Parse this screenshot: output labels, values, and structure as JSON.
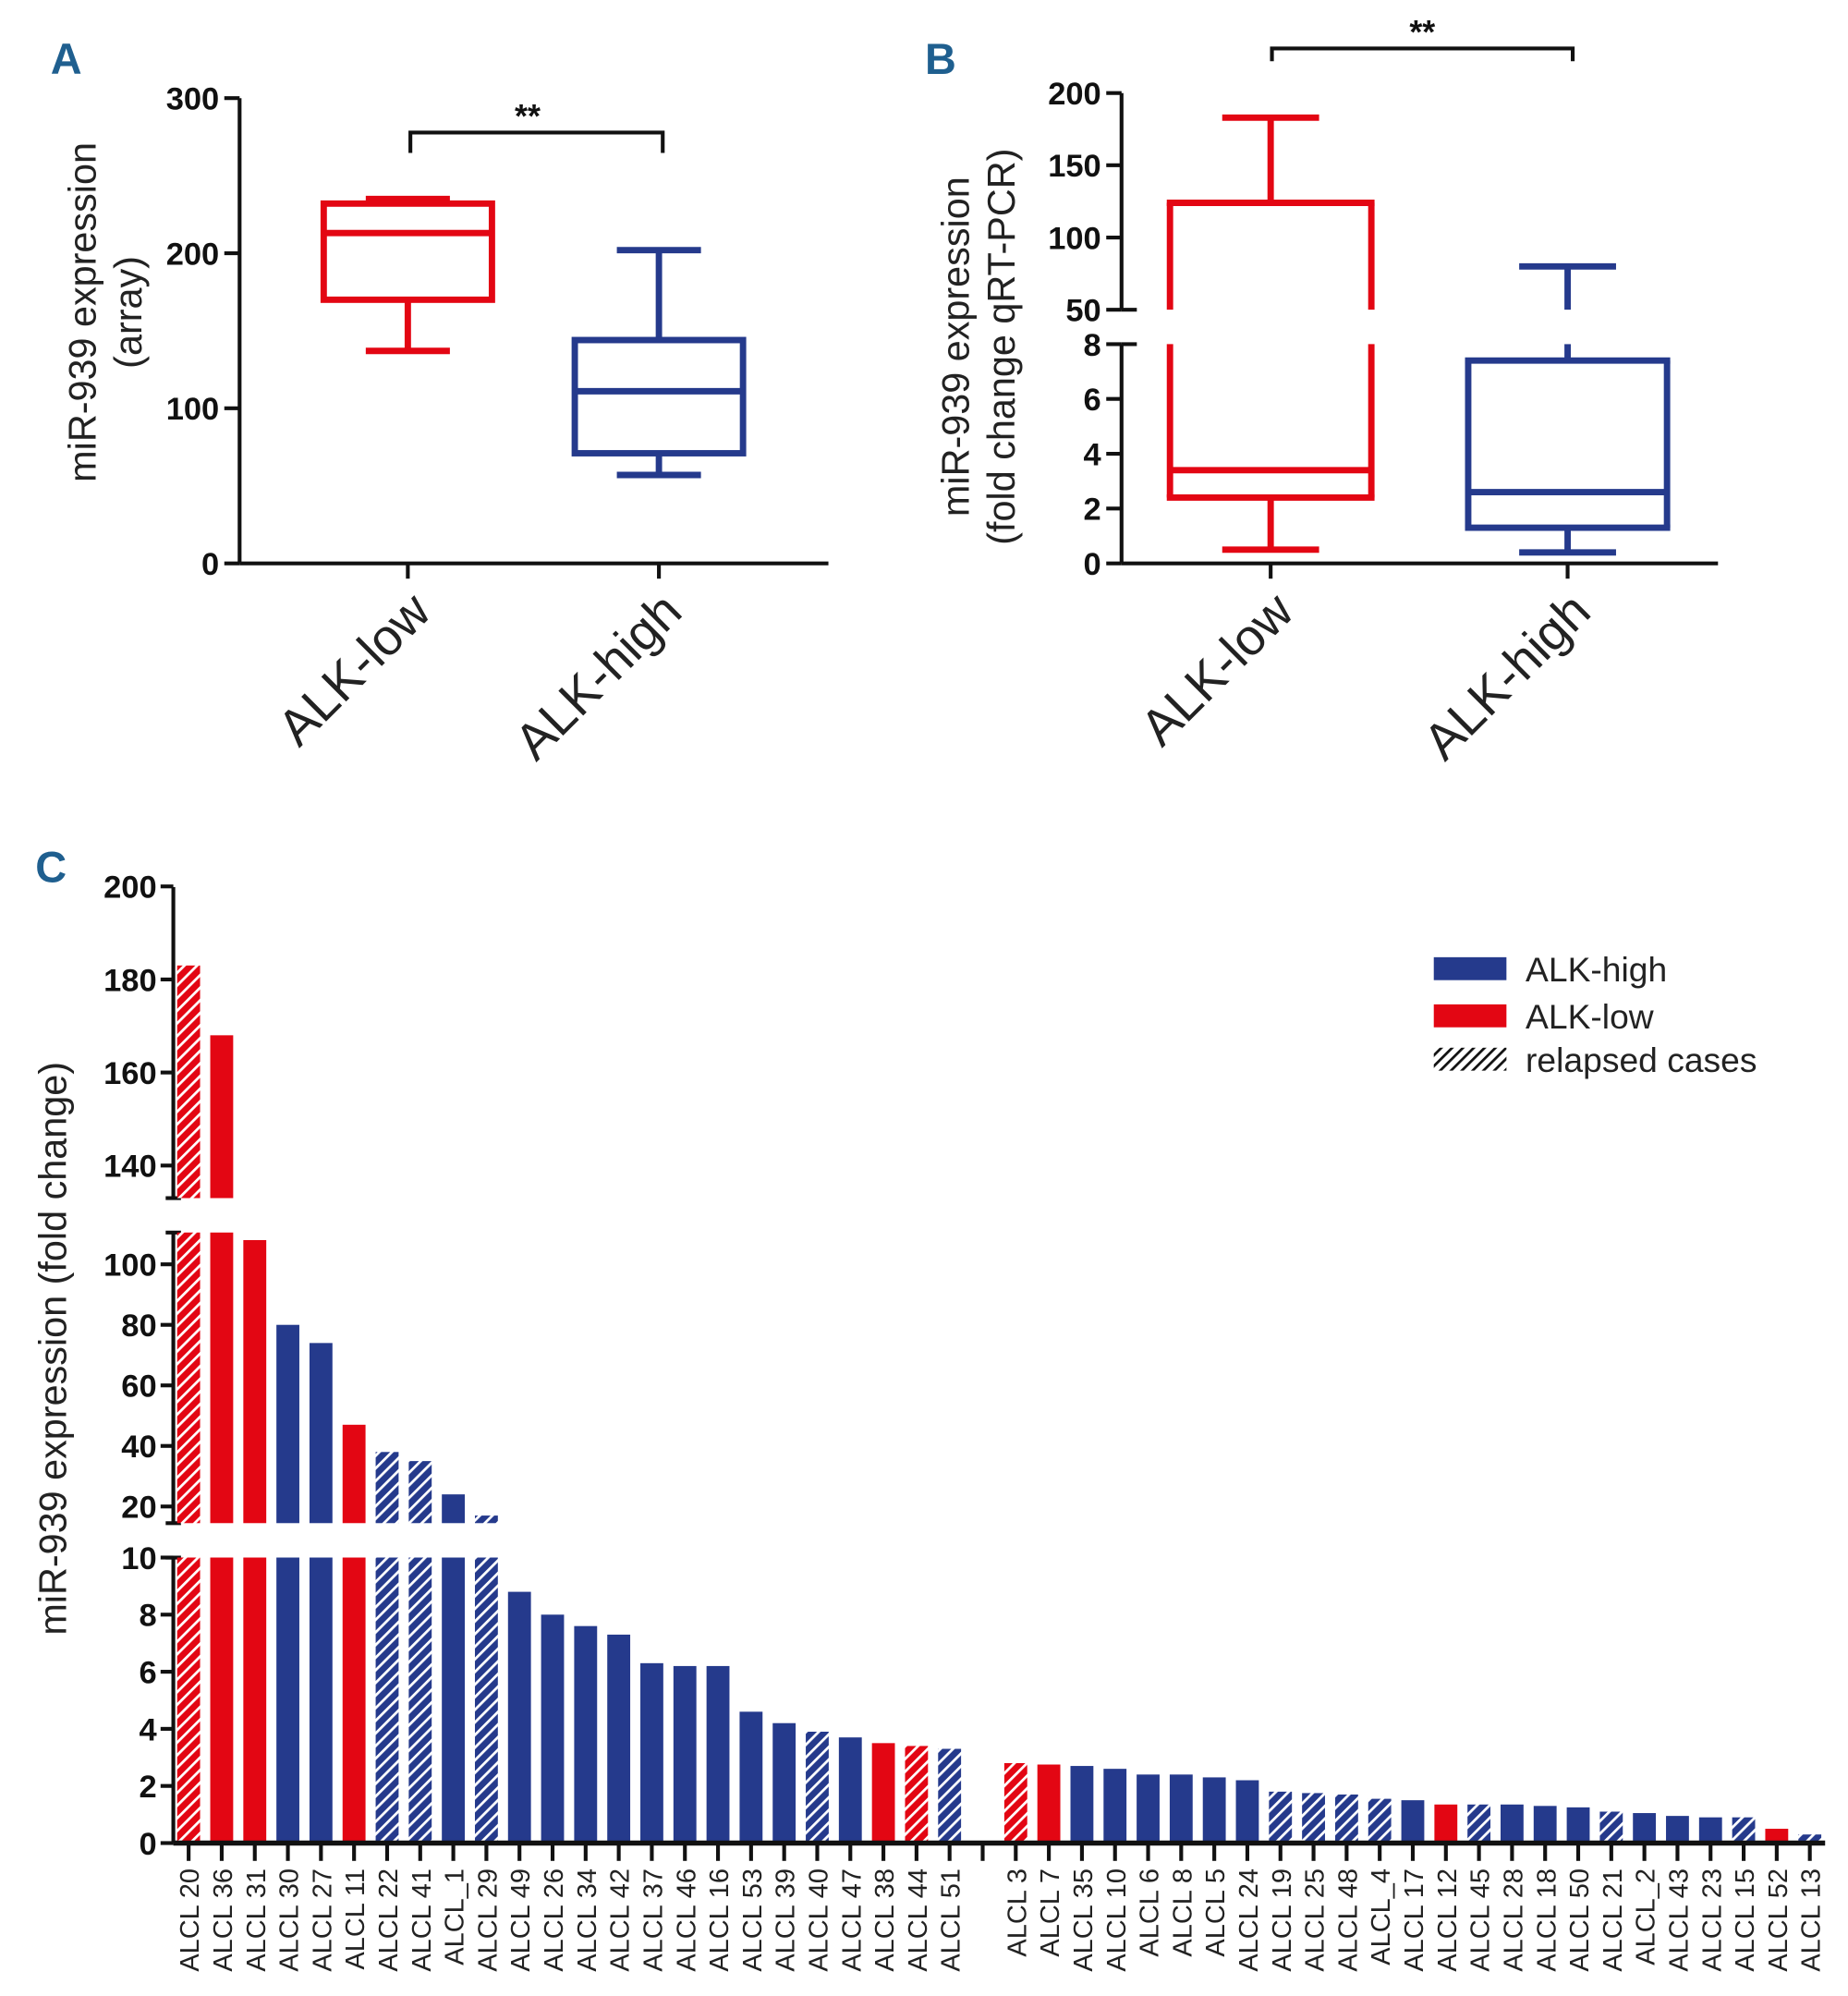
{
  "colors": {
    "red": "#e30613",
    "blue": "#253a8c",
    "panel_label": "#1f5f8f"
  },
  "chart_data": [
    {
      "type": "box",
      "panel": "A",
      "ylabel": [
        "miR-939 expression",
        "(array)"
      ],
      "ylim": [
        0,
        300
      ],
      "yticks": [
        0,
        100,
        200,
        300
      ],
      "categories": [
        "ALK-low",
        "ALK-high"
      ],
      "significance": "**",
      "boxes": [
        {
          "name": "ALK-low",
          "color": "red",
          "min": 137,
          "q1": 170,
          "median": 213,
          "q3": 232,
          "max": 235
        },
        {
          "name": "ALK-high",
          "color": "blue",
          "min": 57,
          "q1": 71,
          "median": 111,
          "q3": 144,
          "max": 202
        }
      ]
    },
    {
      "type": "box",
      "panel": "B",
      "ylabel": [
        "miR-939 expression",
        "(fold change qRT-PCR)"
      ],
      "axis_break": [
        8,
        50
      ],
      "ylim": [
        0,
        200
      ],
      "yticks": [
        0,
        2,
        4,
        6,
        8,
        50,
        100,
        150,
        200
      ],
      "categories": [
        "ALK-low",
        "ALK-high"
      ],
      "significance": "**",
      "boxes": [
        {
          "name": "ALK-low",
          "color": "red",
          "min": 0.5,
          "q1": 2.4,
          "median": 3.4,
          "q3": 124,
          "max": 183
        },
        {
          "name": "ALK-high",
          "color": "blue",
          "min": 0.4,
          "q1": 1.3,
          "median": 2.6,
          "q3": 7.4,
          "max": 80
        }
      ]
    },
    {
      "type": "bar",
      "panel": "C",
      "ylabel": "miR-939 expression (fold change)",
      "axis_breaks": [
        [
          10,
          14.5
        ],
        [
          110.5,
          133
        ]
      ],
      "ylim": [
        0,
        200
      ],
      "yticks": [
        0,
        2,
        4,
        6,
        8,
        10,
        20,
        40,
        60,
        80,
        100,
        140,
        160,
        180,
        200
      ],
      "legend": {
        "position": "top-right",
        "entries": [
          {
            "label": "ALK-high",
            "kind": "blue"
          },
          {
            "label": "ALK-low",
            "kind": "red"
          },
          {
            "label": "relapsed cases",
            "kind": "hatch"
          }
        ]
      },
      "groups": [
        [
          {
            "label": "ALCL 20",
            "value": 183,
            "color": "red",
            "relapsed": true
          },
          {
            "label": "ALCL 36",
            "value": 168,
            "color": "red",
            "relapsed": false
          },
          {
            "label": "ALCL 31",
            "value": 108,
            "color": "red",
            "relapsed": false
          },
          {
            "label": "ALCL 30",
            "value": 80,
            "color": "blue",
            "relapsed": false
          },
          {
            "label": "ALCL 27",
            "value": 74,
            "color": "blue",
            "relapsed": false
          },
          {
            "label": "ALCL 11",
            "value": 47,
            "color": "red",
            "relapsed": false
          },
          {
            "label": "ALCL 22",
            "value": 38,
            "color": "blue",
            "relapsed": true
          },
          {
            "label": "ALCL 41",
            "value": 35,
            "color": "blue",
            "relapsed": true
          },
          {
            "label": "ALCL_1",
            "value": 24,
            "color": "blue",
            "relapsed": false
          },
          {
            "label": "ALCL 29",
            "value": 17,
            "color": "blue",
            "relapsed": true
          },
          {
            "label": "ALCL 49",
            "value": 8.8,
            "color": "blue",
            "relapsed": false
          },
          {
            "label": "ALCL 26",
            "value": 8.0,
            "color": "blue",
            "relapsed": false
          },
          {
            "label": "ALCL 34",
            "value": 7.6,
            "color": "blue",
            "relapsed": false
          },
          {
            "label": "ALCL 42",
            "value": 7.3,
            "color": "blue",
            "relapsed": false
          },
          {
            "label": "ALCL 37",
            "value": 6.3,
            "color": "blue",
            "relapsed": false
          },
          {
            "label": "ALCL 46",
            "value": 6.2,
            "color": "blue",
            "relapsed": false
          },
          {
            "label": "ALCL 16",
            "value": 6.2,
            "color": "blue",
            "relapsed": false
          },
          {
            "label": "ALCL 53",
            "value": 4.6,
            "color": "blue",
            "relapsed": false
          },
          {
            "label": "ALCL 39",
            "value": 4.2,
            "color": "blue",
            "relapsed": false
          },
          {
            "label": "ALCL 40",
            "value": 3.9,
            "color": "blue",
            "relapsed": true
          },
          {
            "label": "ALCL 47",
            "value": 3.7,
            "color": "blue",
            "relapsed": false
          },
          {
            "label": "ALCL 38",
            "value": 3.5,
            "color": "red",
            "relapsed": false
          },
          {
            "label": "ALCL 44",
            "value": 3.4,
            "color": "red",
            "relapsed": true
          },
          {
            "label": "ALCL 51",
            "value": 3.3,
            "color": "blue",
            "relapsed": true
          }
        ],
        [
          {
            "label": "ALCL 3",
            "value": 2.8,
            "color": "red",
            "relapsed": true
          },
          {
            "label": "ALCL 7",
            "value": 2.75,
            "color": "red",
            "relapsed": false
          },
          {
            "label": "ALCL 35",
            "value": 2.7,
            "color": "blue",
            "relapsed": false
          },
          {
            "label": "ALCL 10",
            "value": 2.6,
            "color": "blue",
            "relapsed": false
          },
          {
            "label": "ALCL 6",
            "value": 2.4,
            "color": "blue",
            "relapsed": false
          },
          {
            "label": "ALCL 8",
            "value": 2.4,
            "color": "blue",
            "relapsed": false
          },
          {
            "label": "ALCL 5",
            "value": 2.3,
            "color": "blue",
            "relapsed": false
          },
          {
            "label": "ALCL 24",
            "value": 2.2,
            "color": "blue",
            "relapsed": false
          },
          {
            "label": "ALCL 19",
            "value": 1.8,
            "color": "blue",
            "relapsed": true
          },
          {
            "label": "ALCL 25",
            "value": 1.75,
            "color": "blue",
            "relapsed": true
          },
          {
            "label": "ALCL 48",
            "value": 1.7,
            "color": "blue",
            "relapsed": true
          },
          {
            "label": "ALCL_4",
            "value": 1.55,
            "color": "blue",
            "relapsed": true
          },
          {
            "label": "ALCL 17",
            "value": 1.5,
            "color": "blue",
            "relapsed": false
          },
          {
            "label": "ALCL 12",
            "value": 1.35,
            "color": "red",
            "relapsed": false
          },
          {
            "label": "ALCL 45",
            "value": 1.35,
            "color": "blue",
            "relapsed": true
          },
          {
            "label": "ALCL 28",
            "value": 1.35,
            "color": "blue",
            "relapsed": false
          },
          {
            "label": "ALCL 18",
            "value": 1.3,
            "color": "blue",
            "relapsed": false
          },
          {
            "label": "ALCL 50",
            "value": 1.25,
            "color": "blue",
            "relapsed": false
          },
          {
            "label": "ALCL 21",
            "value": 1.1,
            "color": "blue",
            "relapsed": true
          },
          {
            "label": "ALCL_2",
            "value": 1.05,
            "color": "blue",
            "relapsed": false
          },
          {
            "label": "ALCL 43",
            "value": 0.95,
            "color": "blue",
            "relapsed": false
          },
          {
            "label": "ALCL 23",
            "value": 0.9,
            "color": "blue",
            "relapsed": false
          },
          {
            "label": "ALCL 15",
            "value": 0.9,
            "color": "blue",
            "relapsed": true
          },
          {
            "label": "ALCL 52",
            "value": 0.5,
            "color": "red",
            "relapsed": false
          },
          {
            "label": "ALCL 13",
            "value": 0.3,
            "color": "blue",
            "relapsed": true
          }
        ]
      ]
    }
  ]
}
